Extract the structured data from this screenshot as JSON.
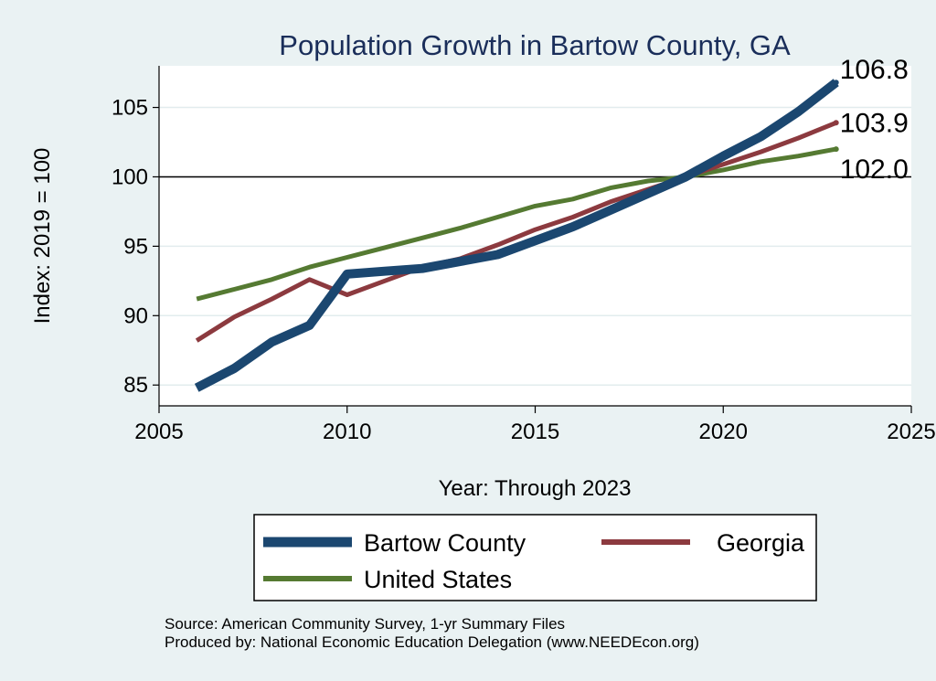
{
  "chart_data": {
    "type": "line",
    "title": "Population Growth in Bartow County, GA",
    "xlabel": "Year: Through 2023",
    "ylabel": "Index: 2019 = 100",
    "xlim": [
      2005,
      2025
    ],
    "ylim": [
      83.5,
      108
    ],
    "xticks": [
      2005,
      2010,
      2015,
      2020,
      2025
    ],
    "yticks": [
      85,
      90,
      95,
      100,
      105
    ],
    "reference_line": 100,
    "grid": true,
    "legend_position": "bottom",
    "series": [
      {
        "name": "Bartow  County",
        "color": "#1b4770",
        "x": [
          2006,
          2007,
          2008,
          2009,
          2010,
          2011,
          2012,
          2013,
          2014,
          2015,
          2016,
          2017,
          2018,
          2019,
          2020,
          2021,
          2022,
          2023
        ],
        "values": [
          84.8,
          86.2,
          88.1,
          89.3,
          93.0,
          93.2,
          93.4,
          93.9,
          94.4,
          95.4,
          96.4,
          97.6,
          98.8,
          100.0,
          101.5,
          102.9,
          104.7,
          106.8
        ],
        "end_label": "106.8"
      },
      {
        "name": "Georgia",
        "color": "#8c3a3f",
        "x": [
          2006,
          2007,
          2008,
          2009,
          2010,
          2011,
          2012,
          2013,
          2014,
          2015,
          2016,
          2017,
          2018,
          2019,
          2020,
          2021,
          2022,
          2023
        ],
        "values": [
          88.2,
          89.9,
          91.2,
          92.6,
          91.5,
          92.5,
          93.5,
          94.1,
          95.1,
          96.2,
          97.1,
          98.2,
          99.1,
          100.0,
          100.9,
          101.8,
          102.8,
          103.9
        ],
        "end_label": "103.9"
      },
      {
        "name": "United States",
        "color": "#557a32",
        "x": [
          2006,
          2007,
          2008,
          2009,
          2010,
          2011,
          2012,
          2013,
          2014,
          2015,
          2016,
          2017,
          2018,
          2019,
          2020,
          2021,
          2022,
          2023
        ],
        "values": [
          91.2,
          91.9,
          92.6,
          93.5,
          94.2,
          94.9,
          95.6,
          96.3,
          97.1,
          97.9,
          98.4,
          99.2,
          99.7,
          100.0,
          100.5,
          101.1,
          101.5,
          102.0
        ],
        "end_label": "102.0"
      }
    ],
    "source_lines": [
      "Source: American Community Survey, 1-yr Summary Files",
      "Produced by: National Economic Education Delegation (www.NEEDEcon.org)"
    ]
  }
}
